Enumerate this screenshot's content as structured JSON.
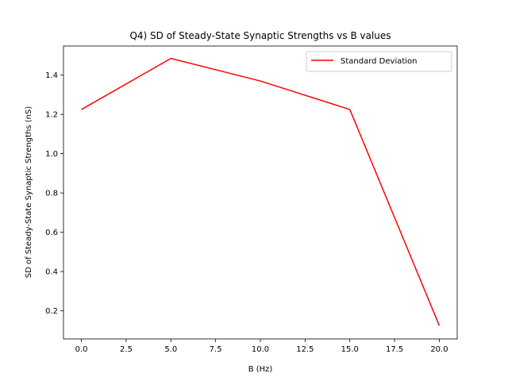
{
  "chart_data": {
    "type": "line",
    "title": "Q4) SD of Steady-State Synaptic Strengths vs B values",
    "xlabel": "B (Hz)",
    "ylabel": "SD of Steady-State Synaptic Strengths (nS)",
    "xlim": [
      -1.0,
      21.0
    ],
    "ylim": [
      0.057,
      1.548
    ],
    "xticks": [
      "0.0",
      "2.5",
      "5.0",
      "7.5",
      "10.0",
      "12.5",
      "15.0",
      "17.5",
      "20.0"
    ],
    "yticks": [
      "0.2",
      "0.4",
      "0.6",
      "0.8",
      "1.0",
      "1.2",
      "1.4"
    ],
    "grid": false,
    "legend_position": "top-right",
    "series": [
      {
        "name": "Standard Deviation",
        "color": "#ff0000",
        "x": [
          0,
          5,
          10,
          15,
          20
        ],
        "y": [
          1.225,
          1.485,
          1.37,
          1.225,
          0.125
        ]
      }
    ]
  }
}
